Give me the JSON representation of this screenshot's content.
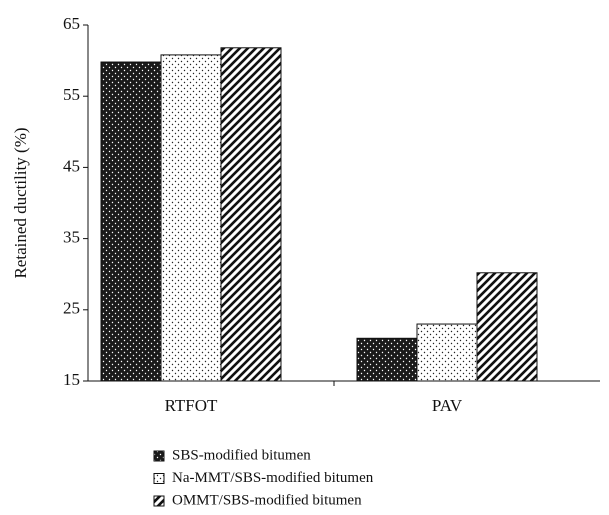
{
  "chart_data": {
    "type": "bar",
    "y_label": "Retained ductility (%)",
    "categories": [
      "RTFOT",
      "PAV"
    ],
    "series": [
      {
        "name": "SBS-modified bitumen",
        "color": "#1a1a1a",
        "values": [
          59.8,
          21
        ]
      },
      {
        "name": "Na-MMT/SBS-modified bitumen",
        "color": "#ffffff",
        "values": [
          60.8,
          23
        ]
      },
      {
        "name": "OMMT/SBS-modified bitumen",
        "color": "#ffffff",
        "values": [
          61.8,
          30.2
        ]
      }
    ],
    "ylim": [
      15,
      65
    ],
    "yticks": [
      15,
      25,
      35,
      45,
      55,
      65
    ],
    "grid": false,
    "legend": "bottom"
  }
}
